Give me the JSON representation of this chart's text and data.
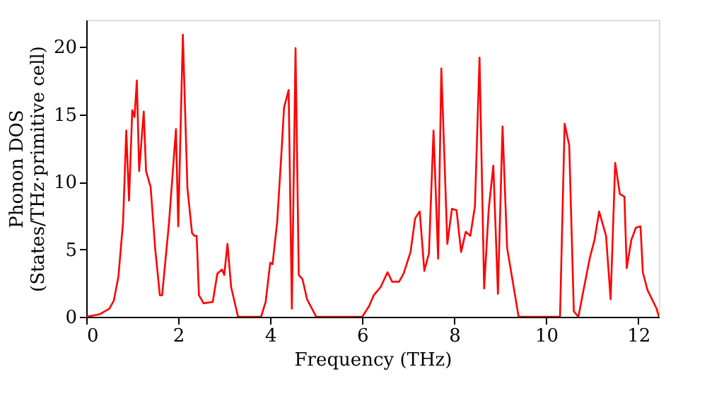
{
  "chart_data": {
    "type": "line",
    "xlabel": "Frequency (THz)",
    "ylabel": "Phonon DOS\n(States/THz·primitive cell)",
    "xlim": [
      0,
      12.45
    ],
    "ylim": [
      0,
      22
    ],
    "xticks": [
      0,
      2,
      4,
      6,
      8,
      10,
      12
    ],
    "yticks": [
      0,
      5,
      10,
      15,
      20
    ],
    "grid": false,
    "series": [
      {
        "color": "#ff0000",
        "x": [
          0,
          0.3,
          0.5,
          0.6,
          0.7,
          0.8,
          0.87,
          0.93,
          1.0,
          1.05,
          1.1,
          1.15,
          1.25,
          1.3,
          1.4,
          1.5,
          1.6,
          1.65,
          1.8,
          1.95,
          2.0,
          2.1,
          2.2,
          2.3,
          2.35,
          2.4,
          2.45,
          2.55,
          2.75,
          2.85,
          2.95,
          3.0,
          3.07,
          3.15,
          3.3,
          3.8,
          3.9,
          4.0,
          4.05,
          4.15,
          4.25,
          4.3,
          4.4,
          4.47,
          4.55,
          4.62,
          4.7,
          4.8,
          5.0,
          6.0,
          6.15,
          6.25,
          6.4,
          6.55,
          6.65,
          6.8,
          6.9,
          7.05,
          7.15,
          7.25,
          7.35,
          7.45,
          7.55,
          7.65,
          7.72,
          7.85,
          7.95,
          8.05,
          8.15,
          8.25,
          8.35,
          8.45,
          8.55,
          8.65,
          8.75,
          8.85,
          8.95,
          9.05,
          9.15,
          9.4,
          10.3,
          10.4,
          10.5,
          10.6,
          10.7,
          10.8,
          10.95,
          11.05,
          11.15,
          11.3,
          11.4,
          11.5,
          11.6,
          11.7,
          11.75,
          11.85,
          11.95,
          12.05,
          12.1,
          12.2,
          12.4,
          12.45
        ],
        "values": [
          0,
          0.2,
          0.6,
          1.2,
          3,
          7,
          13.8,
          8.6,
          15.3,
          14.8,
          17.5,
          10.8,
          15.2,
          10.8,
          9.6,
          5,
          1.6,
          1.6,
          7,
          13.9,
          6.7,
          20.9,
          9.5,
          6.2,
          6,
          6,
          1.6,
          1.0,
          1.1,
          3.2,
          3.5,
          3.1,
          5.4,
          2.2,
          0,
          0,
          1.1,
          4,
          3.9,
          7,
          12.5,
          15.5,
          16.8,
          0.6,
          19.9,
          3.1,
          2.8,
          1.3,
          0,
          0,
          0.8,
          1.6,
          2.2,
          3.3,
          2.6,
          2.6,
          3.2,
          4.8,
          7.3,
          7.8,
          3.4,
          4.7,
          13.8,
          4.3,
          18.4,
          5.4,
          8,
          7.9,
          4.8,
          6.3,
          6,
          8.2,
          19.2,
          2.1,
          8,
          11.2,
          1.7,
          14.1,
          5.1,
          0,
          0,
          14.3,
          12.7,
          0.4,
          0,
          1.8,
          4.4,
          5.7,
          7.8,
          6,
          1.3,
          11.4,
          9.1,
          8.9,
          3.6,
          5.7,
          6.6,
          6.7,
          3.3,
          2,
          0.6,
          0
        ]
      }
    ]
  }
}
